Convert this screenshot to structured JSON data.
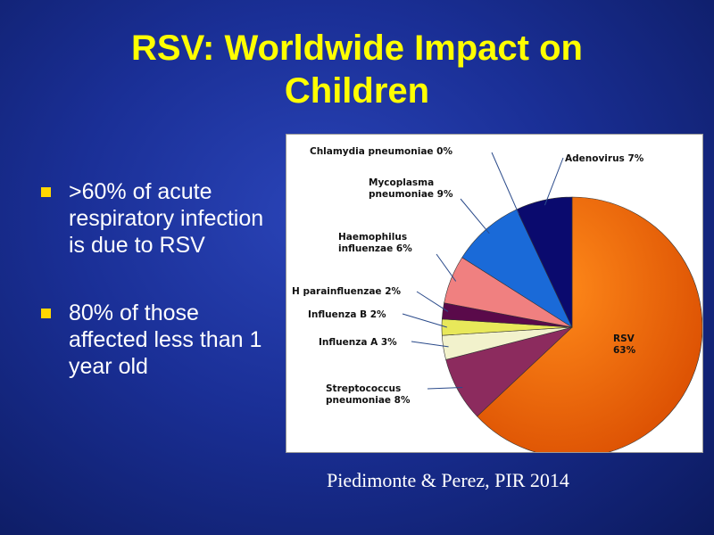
{
  "slide": {
    "title_line1": "RSV: Worldwide Impact on",
    "title_line2": "Children",
    "bullets": [
      ">60% of acute respiratory infection is due to RSV",
      "80% of those affected less than 1 year old"
    ],
    "citation": "Piedimonte & Perez, PIR 2014"
  },
  "chart_data": {
    "type": "pie",
    "slices": [
      {
        "label": "RSV",
        "value": 63,
        "display": "63%",
        "color": "#f2600a"
      },
      {
        "label": "Streptococcus pneumoniae",
        "value": 8,
        "display": "8%",
        "color": "#8c2b5e"
      },
      {
        "label": "Influenza A",
        "value": 3,
        "display": "3%",
        "color": "#f2f2cc"
      },
      {
        "label": "Influenza B",
        "value": 2,
        "display": "2%",
        "color": "#e8e85a"
      },
      {
        "label": "H parainfluenzae",
        "value": 2,
        "display": "2%",
        "color": "#5a0a4a"
      },
      {
        "label": "Haemophilus influenzae",
        "value": 6,
        "display": "6%",
        "color": "#f08080"
      },
      {
        "label": "Mycoplasma pneumoniae",
        "value": 9,
        "display": "9%",
        "color": "#1a6ad8"
      },
      {
        "label": "Chlamydia pneumoniae",
        "value": 0,
        "display": "0%",
        "color": "#2a2a8a"
      },
      {
        "label": "Adenovirus",
        "value": 7,
        "display": "7%",
        "color": "#0a0a6e"
      }
    ]
  }
}
